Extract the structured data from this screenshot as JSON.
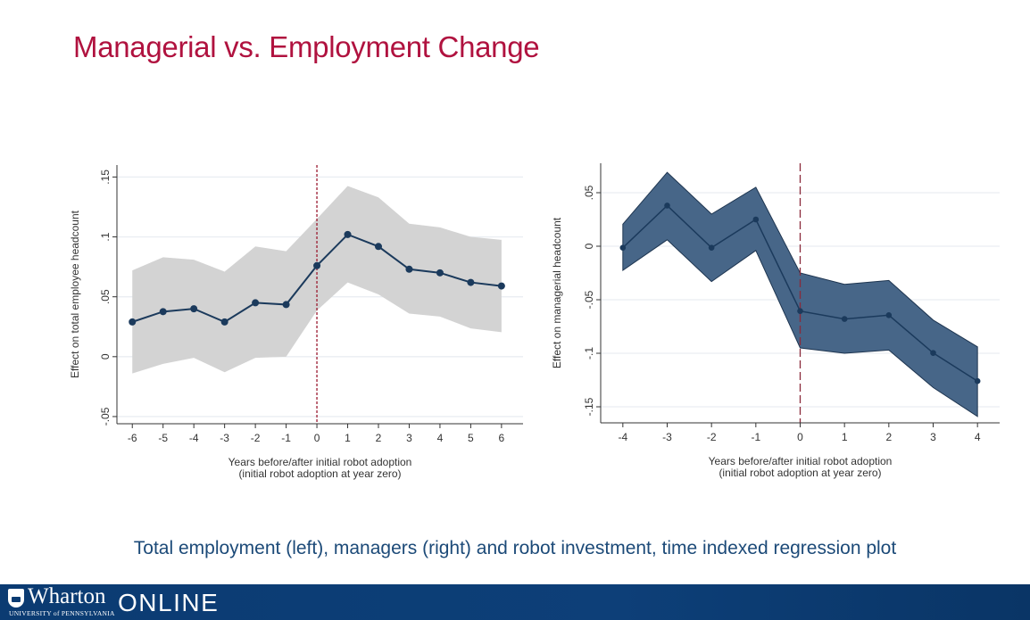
{
  "slide": {
    "title": "Managerial vs. Employment Change",
    "caption": "Total employment (left), managers (right) and robot investment, time indexed regression plot",
    "footer": {
      "brand": "Wharton",
      "subtitle": "UNIVERSITY of PENNSYLVANIA",
      "online": "ONLINE"
    },
    "colors": {
      "title": "#b0123f",
      "caption": "#1c4a78",
      "footer_bg": "#0b3b72"
    }
  },
  "chart_data": [
    {
      "type": "line",
      "title": "",
      "xlabel": "Years before/after initial robot adoption",
      "xlabel2": "(initial robot adoption at year zero)",
      "ylabel": "Effect on total employee headcount",
      "x": [
        -6,
        -5,
        -4,
        -3,
        -2,
        -1,
        0,
        1,
        2,
        3,
        4,
        5,
        6
      ],
      "xticks": [
        "-6",
        "-5",
        "-4",
        "-3",
        "-2",
        "-1",
        "0",
        "1",
        "2",
        "3",
        "4",
        "5",
        "6"
      ],
      "yticks": [
        {
          "v": -0.05,
          "label": "-.05"
        },
        {
          "v": 0,
          "label": "0"
        },
        {
          "v": 0.05,
          "label": ".05"
        },
        {
          "v": 0.1,
          "label": ".1"
        },
        {
          "v": 0.15,
          "label": ".15"
        }
      ],
      "xlim": [
        -6.5,
        6.7
      ],
      "ylim": [
        -0.056,
        0.16
      ],
      "grid": true,
      "vline": 0,
      "series": [
        {
          "name": "estimate",
          "values": [
            0.029,
            0.0376,
            0.04,
            0.029,
            0.045,
            0.0435,
            0.076,
            0.102,
            0.092,
            0.073,
            0.07,
            0.062,
            0.059
          ]
        },
        {
          "name": "upper CI",
          "values": [
            0.072,
            0.083,
            0.081,
            0.071,
            0.092,
            0.088,
            0.115,
            0.1425,
            0.133,
            0.111,
            0.108,
            0.1,
            0.0975
          ]
        },
        {
          "name": "lower CI",
          "values": [
            -0.014,
            -0.006,
            -0.001,
            -0.013,
            -0.001,
            0.0,
            0.0385,
            0.062,
            0.052,
            0.036,
            0.0335,
            0.0236,
            0.0204
          ]
        }
      ],
      "colors": {
        "line": "#1b3a5c",
        "band": "#d3d3d3",
        "vline": "#9b1b30"
      }
    },
    {
      "type": "line",
      "title": "",
      "xlabel": "Years before/after initial robot adoption",
      "xlabel2": "(initial robot adoption at year zero)",
      "ylabel": "Effect on managerial headcount",
      "x": [
        -4,
        -3,
        -2,
        -1,
        0,
        1,
        2,
        3,
        4
      ],
      "xticks": [
        "-4",
        "-3",
        "-2",
        "-1",
        "0",
        "1",
        "2",
        "3",
        "4"
      ],
      "yticks": [
        {
          "v": -0.15,
          "label": "-.15"
        },
        {
          "v": -0.1,
          "label": "-.1"
        },
        {
          "v": -0.05,
          "label": "-.05"
        },
        {
          "v": 0,
          "label": "0"
        },
        {
          "v": 0.05,
          "label": ".05"
        }
      ],
      "xlim": [
        -4.5,
        4.5
      ],
      "ylim": [
        -0.165,
        0.0775
      ],
      "grid": true,
      "vline": 0,
      "series": [
        {
          "name": "estimate",
          "values": [
            -0.0014,
            0.038,
            -0.0014,
            0.025,
            -0.0606,
            -0.068,
            -0.0644,
            -0.0997,
            -0.126
          ]
        },
        {
          "name": "upper CI",
          "values": [
            0.0206,
            0.069,
            0.03,
            0.055,
            -0.025,
            -0.0356,
            -0.032,
            -0.069,
            -0.094
          ]
        },
        {
          "name": "lower CI",
          "values": [
            -0.0225,
            0.006,
            -0.033,
            -0.004,
            -0.095,
            -0.1,
            -0.097,
            -0.132,
            -0.159
          ]
        }
      ],
      "colors": {
        "line": "#1b3a5c",
        "band": "#476688",
        "vline": "#8a2a3a"
      }
    }
  ]
}
